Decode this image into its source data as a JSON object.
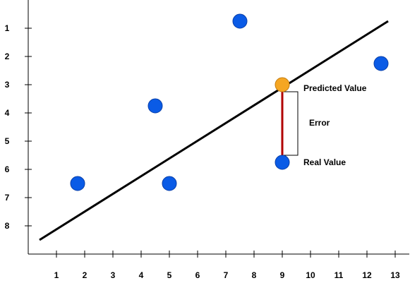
{
  "chart_data": {
    "type": "scatter",
    "xlim": [
      0,
      13.5
    ],
    "ylim": [
      0,
      9
    ],
    "y_inverted": true,
    "x_ticks": [
      1,
      2,
      3,
      4,
      5,
      6,
      7,
      8,
      9,
      10,
      11,
      12,
      13
    ],
    "y_ticks": [
      1,
      2,
      3,
      4,
      5,
      6,
      7,
      8
    ],
    "points": [
      {
        "x": 1.75,
        "y": 6.5
      },
      {
        "x": 4.5,
        "y": 3.75
      },
      {
        "x": 5.0,
        "y": 6.5
      },
      {
        "x": 7.5,
        "y": 0.75
      },
      {
        "x": 12.5,
        "y": 2.25
      },
      {
        "x": 9.0,
        "y": 5.75
      }
    ],
    "regression_line": {
      "x1": 0.4,
      "y1": 8.5,
      "x2": 12.75,
      "y2": 0.75
    },
    "predicted_point": {
      "x": 9.0,
      "y": 3.0
    },
    "real_point": {
      "x": 9.0,
      "y": 5.75
    },
    "annotations": {
      "predicted": "Predicted Value",
      "real": "Real Value",
      "error": "Error"
    },
    "colors": {
      "point": "#0a5be6",
      "point_stroke": "#0a3fa8",
      "predicted": "#f5a623",
      "predicted_stroke": "#c47d10",
      "error_line": "#b00000",
      "axis": "#000000"
    }
  }
}
